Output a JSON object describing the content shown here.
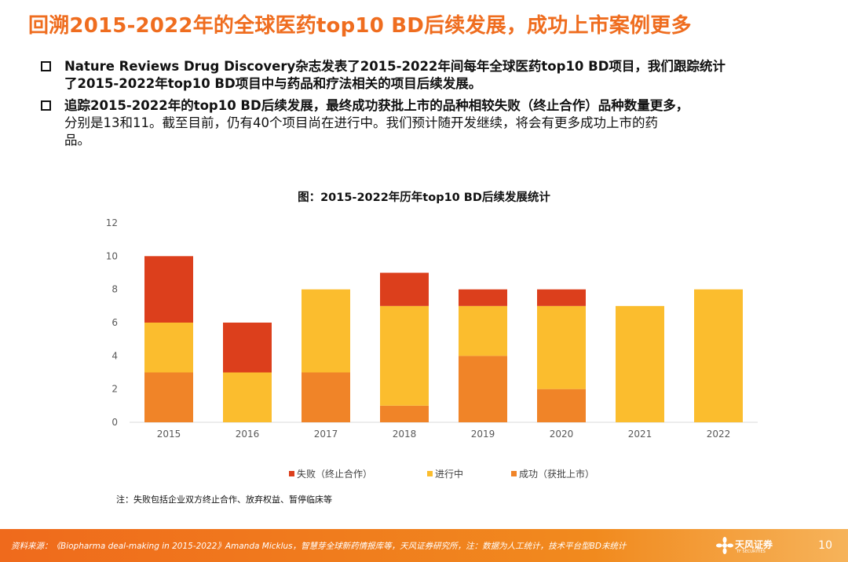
{
  "slide": {
    "title": "回溯2015-2022年的全球医药top10 BD后续发展，成功上市案例更多",
    "bullets": [
      {
        "lines": [
          "Nature Reviews Drug Discovery杂志发表了2015-2022年间每年全球医药top10 BD项目，我们跟踪统计",
          "了2015-2022年top10 BD项目中与药品和疗法相关的项目后续发展。"
        ],
        "bold_lines": 2
      },
      {
        "lines": [
          "追踪2015-2022年的top10  BD后续发展，最终成功获批上市的品种相较失败（终止合作）品种数量更多，",
          "分别是13和11。截至目前，仍有40个项目尚在进行中。我们预计随开发继续，将会有更多成功上市的药",
          "品。"
        ],
        "bold_lines": 1
      }
    ],
    "note": "注：失败包括企业双方终止合作、放弃权益、暂停临床等",
    "footer": {
      "source": "资料来源：《Biopharma deal-making in 2015-2022》Amanda Micklus，智慧芽全球新药情报库等，天风证券研究所，注：数据为人工统计，技术平台型BD未统计",
      "brand": "天风证券",
      "brand_en": "TF SECURITIES",
      "page": "10"
    }
  },
  "chart_data": {
    "type": "bar",
    "stacked": true,
    "title": "图：2015-2022年历年top10 BD后续发展统计",
    "categories": [
      "2015",
      "2016",
      "2017",
      "2018",
      "2019",
      "2020",
      "2021",
      "2022"
    ],
    "series": [
      {
        "name": "成功（获批上市）",
        "values": [
          3,
          0,
          3,
          1,
          4,
          2,
          0,
          0
        ],
        "color": "#f08428"
      },
      {
        "name": "进行中",
        "values": [
          3,
          3,
          5,
          6,
          3,
          5,
          7,
          8
        ],
        "color": "#fbbd2e"
      },
      {
        "name": "失败（终止合作）",
        "values": [
          4,
          3,
          0,
          2,
          1,
          1,
          0,
          0
        ],
        "color": "#dc3f1c"
      }
    ],
    "legend_order": [
      "失败（终止合作）",
      "进行中",
      "成功（获批上市）"
    ],
    "ylim": [
      0,
      12
    ],
    "yticks": [
      0,
      2,
      4,
      6,
      8,
      10,
      12
    ],
    "xlabel": "",
    "ylabel": "",
    "grid": false,
    "legend_position": "bottom"
  }
}
